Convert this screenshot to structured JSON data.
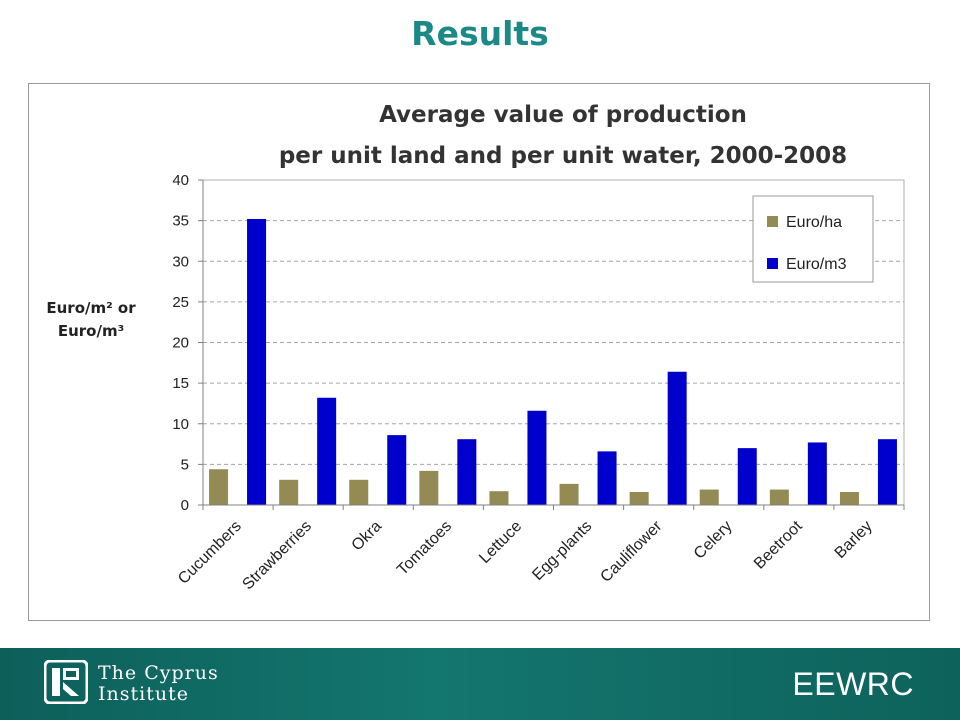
{
  "slide": {
    "title": "Results"
  },
  "chart_data": {
    "type": "bar",
    "title_line1": "Average value of production",
    "title_line2": "per unit land and per unit water, 2000-2008",
    "ylabel_line1": "Euro/m² or",
    "ylabel_line2": "Euro/m³",
    "xlabel": "",
    "ylim": [
      0,
      40
    ],
    "yticks": [
      0,
      5,
      10,
      15,
      20,
      25,
      30,
      35,
      40
    ],
    "grid": true,
    "legend_position": "top-right",
    "categories": [
      "Cucumbers",
      "Strawberries",
      "Okra",
      "Tomatoes",
      "Lettuce",
      "Egg-plants",
      "Cauliflower",
      "Celery",
      "Beetroot",
      "Barley"
    ],
    "series": [
      {
        "name": "Euro/ha",
        "color": "#948a54",
        "values": [
          4.4,
          3.1,
          3.1,
          4.2,
          1.7,
          2.6,
          1.6,
          1.9,
          1.9,
          1.6
        ]
      },
      {
        "name": "Euro/m3",
        "color": "#0000cc",
        "values": [
          35.2,
          13.2,
          8.6,
          8.1,
          11.6,
          6.6,
          16.4,
          7.0,
          7.7,
          8.1
        ]
      }
    ]
  },
  "footer": {
    "org_line1": "The Cyprus",
    "org_line2": "Institute",
    "brand": "EEWRC",
    "logo_icon": "cyprus-institute-logo-icon"
  }
}
